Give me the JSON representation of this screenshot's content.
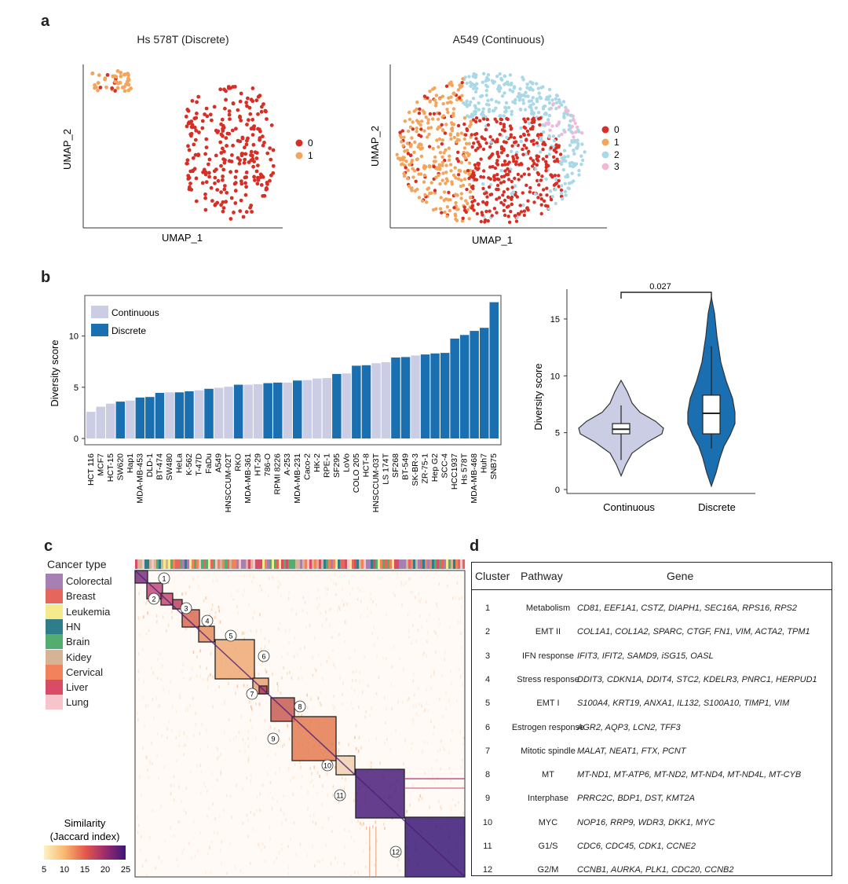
{
  "panels": {
    "a": "a",
    "b": "b",
    "c": "c",
    "d": "d"
  },
  "panel_a": {
    "left": {
      "title": "Hs 578T (Discrete)",
      "xlabel": "UMAP_1",
      "ylabel": "UMAP_2",
      "legend": [
        "0",
        "1"
      ],
      "colors": [
        "#d62f26",
        "#f4a55c"
      ]
    },
    "right": {
      "title": "A549 (Continuous)",
      "xlabel": "UMAP_1",
      "ylabel": "UMAP_2",
      "legend": [
        "0",
        "1",
        "2",
        "3"
      ],
      "colors": [
        "#d62f26",
        "#f4a55c",
        "#a9d8e6",
        "#f2b8d8"
      ]
    }
  },
  "chart_data": [
    {
      "type": "bar",
      "ylabel": "Diversity score",
      "ylim": [
        0,
        13.5
      ],
      "yticks": [
        0,
        5,
        10
      ],
      "legend": [
        {
          "name": "Continuous",
          "color": "#cbcde5"
        },
        {
          "name": "Discrete",
          "color": "#1a6fb0"
        }
      ],
      "legend_position": "top-left",
      "categories": [
        "HCT 116",
        "MCF7",
        "HCT-15",
        "SW620",
        "Hap1",
        "MDA-MB-453",
        "DLD-1",
        "BT-474",
        "SW480",
        "HeLa",
        "K-562",
        "T-47D",
        "FaDu",
        "A549",
        "HNSCCUM-02T",
        "RKO",
        "MDA-MB-361",
        "HT-29",
        "786-O",
        "RPMI 8226",
        "A-253",
        "MDA-MB-231",
        "Caco-2",
        "HK-2",
        "RPE-1",
        "SF295",
        "LoVo",
        "COLO 205",
        "HCT-8",
        "HNSCCUM-03T",
        "LS 174T",
        "SF268",
        "BT-549",
        "SK-BR-3",
        "ZR-75-1",
        "Hep G2",
        "SCC-4",
        "HCC1937",
        "Hs 578T",
        "MDA-MB-468",
        "Huh7",
        "SNB75"
      ],
      "values": [
        2.6,
        3.1,
        3.4,
        3.6,
        3.7,
        4.0,
        4.05,
        4.45,
        4.5,
        4.5,
        4.6,
        4.7,
        4.85,
        4.95,
        5.05,
        5.25,
        5.25,
        5.3,
        5.4,
        5.45,
        5.45,
        5.65,
        5.7,
        5.85,
        5.9,
        6.3,
        6.35,
        7.1,
        7.15,
        7.35,
        7.45,
        7.9,
        7.95,
        8.1,
        8.2,
        8.3,
        8.35,
        9.75,
        10.1,
        10.5,
        10.8,
        13.3
      ],
      "groups": [
        "C",
        "C",
        "C",
        "D",
        "C",
        "D",
        "D",
        "D",
        "C",
        "D",
        "D",
        "C",
        "D",
        "C",
        "C",
        "D",
        "C",
        "C",
        "D",
        "D",
        "C",
        "D",
        "C",
        "C",
        "C",
        "D",
        "C",
        "D",
        "D",
        "C",
        "C",
        "D",
        "D",
        "C",
        "D",
        "D",
        "D",
        "D",
        "D",
        "D",
        "D",
        "D"
      ]
    },
    {
      "type": "violin",
      "ylabel": "Diversity score",
      "ylim": [
        0,
        17
      ],
      "yticks": [
        0,
        5,
        10,
        15
      ],
      "categories": [
        "Continuous",
        "Discrete"
      ],
      "colors": [
        "#cbcde5",
        "#1a6fb0"
      ],
      "box": [
        {
          "min": 2.6,
          "q1": 4.9,
          "median": 5.3,
          "q3": 5.8,
          "max": 7.4
        },
        {
          "min": 3.6,
          "q1": 4.9,
          "median": 6.7,
          "q3": 8.3,
          "max": 12.6
        }
      ],
      "range": [
        [
          1.2,
          9.6
        ],
        [
          0.3,
          16.9
        ]
      ],
      "pvalue": "0.027"
    }
  ],
  "panel_c": {
    "legend_title": "Cancer type",
    "cancer_types": [
      {
        "name": "Colorectal",
        "color": "#a67fb3"
      },
      {
        "name": "Breast",
        "color": "#e5665c"
      },
      {
        "name": "Leukemia",
        "color": "#f5ea8c"
      },
      {
        "name": "HN",
        "color": "#2f7c8a"
      },
      {
        "name": "Brain",
        "color": "#52ad6e"
      },
      {
        "name": "Kidey",
        "color": "#d6b394"
      },
      {
        "name": "Cervical",
        "color": "#f2825c"
      },
      {
        "name": "Liver",
        "color": "#d94c66"
      },
      {
        "name": "Lung",
        "color": "#f7c4cc"
      }
    ],
    "scale_title_1": "Similarity",
    "scale_title_2": "(Jaccard index)",
    "scale_ticks": [
      "5",
      "10",
      "15",
      "20",
      "25"
    ],
    "scale_colors": [
      "#fcf2c4",
      "#f9b86e",
      "#e55a4a",
      "#9c2b6e",
      "#3b1778"
    ],
    "module_labels": [
      "1",
      "2",
      "3",
      "4",
      "5",
      "6",
      "7",
      "8",
      "9",
      "10",
      "11",
      "12"
    ]
  },
  "panel_d": {
    "headers": {
      "cluster": "Cluster",
      "pathway": "Pathway",
      "gene": "Gene"
    },
    "rows": [
      {
        "cluster": "1",
        "pathway": "Metabolism",
        "gene": "CD81, EEF1A1, CSTZ, DIAPH1, SEC16A, RPS16, RPS2"
      },
      {
        "cluster": "2",
        "pathway": "EMT II",
        "gene": "COL1A1, COL1A2, SPARC, CTGF, FN1, VIM, ACTA2, TPM1"
      },
      {
        "cluster": "3",
        "pathway": "IFN response",
        "gene": "IFIT3, IFIT2, SAMD9, iSG15, OASL"
      },
      {
        "cluster": "4",
        "pathway": "Stress response",
        "gene": "DDIT3, CDKN1A, DDIT4, STC2, KDELR3, PNRC1, HERPUD1"
      },
      {
        "cluster": "5",
        "pathway": "EMT I",
        "gene": "S100A4, KRT19, ANXA1, IL132, S100A10, TIMP1, VIM"
      },
      {
        "cluster": "6",
        "pathway": "Estrogen response",
        "gene": "AGR2, AQP3, LCN2, TFF3"
      },
      {
        "cluster": "7",
        "pathway": "Mitotic spindle",
        "gene": "MALAT, NEAT1, FTX, PCNT"
      },
      {
        "cluster": "8",
        "pathway": "MT",
        "gene": "MT-ND1, MT-ATP6, MT-ND2, MT-ND4, MT-ND4L, MT-CYB"
      },
      {
        "cluster": "9",
        "pathway": "Interphase",
        "gene": "PRRC2C, BDP1, DST, KMT2A"
      },
      {
        "cluster": "10",
        "pathway": "MYC",
        "gene": "NOP16, RRP9, WDR3, DKK1, MYC"
      },
      {
        "cluster": "11",
        "pathway": "G1/S",
        "gene": "CDC6, CDC45, CDK1, CCNE2"
      },
      {
        "cluster": "12",
        "pathway": "G2/M",
        "gene": "CCNB1, AURKA, PLK1, CDC20, CCNB2"
      }
    ]
  }
}
